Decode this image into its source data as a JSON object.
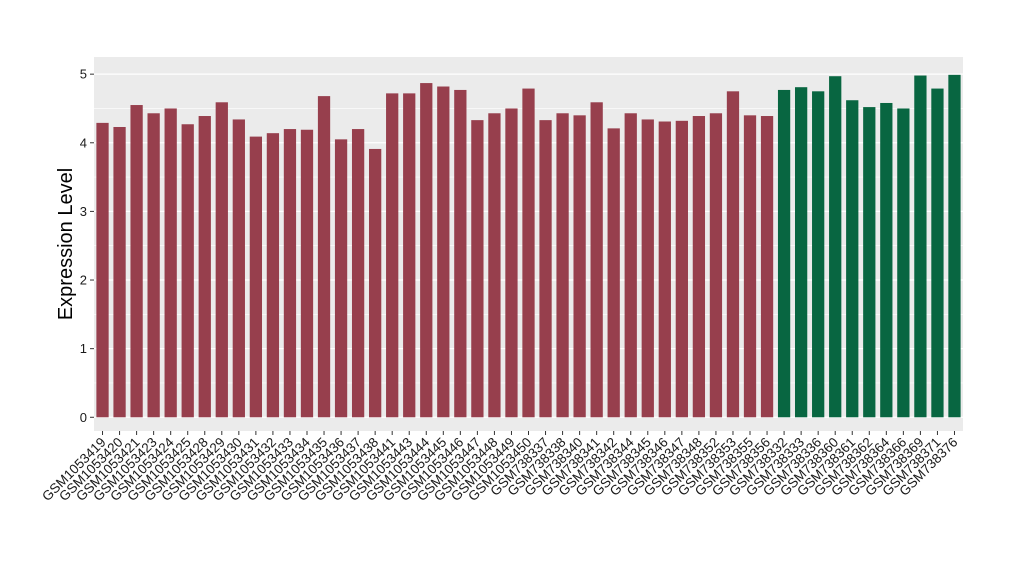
{
  "chart_data": {
    "type": "bar",
    "title": "",
    "xlabel": "",
    "ylabel": "Expression Level",
    "ylim": [
      -0.2,
      5.25
    ],
    "yticks": [
      0,
      1,
      2,
      3,
      4,
      5
    ],
    "grid": true,
    "legend": "none",
    "colors": {
      "group1": "#973f4d",
      "group2": "#086641",
      "panel_bg": "#ebebeb",
      "grid": "#ffffff"
    },
    "categories": [
      "GSM1053419",
      "GSM1053420",
      "GSM1053421",
      "GSM1053423",
      "GSM1053424",
      "GSM1053425",
      "GSM1053428",
      "GSM1053429",
      "GSM1053430",
      "GSM1053431",
      "GSM1053432",
      "GSM1053433",
      "GSM1053434",
      "GSM1053435",
      "GSM1053436",
      "GSM1053437",
      "GSM1053438",
      "GSM1053441",
      "GSM1053443",
      "GSM1053444",
      "GSM1053445",
      "GSM1053446",
      "GSM1053447",
      "GSM1053448",
      "GSM1053449",
      "GSM1053450",
      "GSM738337",
      "GSM738338",
      "GSM738340",
      "GSM738341",
      "GSM738342",
      "GSM738344",
      "GSM738345",
      "GSM738346",
      "GSM738347",
      "GSM738348",
      "GSM738352",
      "GSM738353",
      "GSM738355",
      "GSM738356",
      "GSM738332",
      "GSM738333",
      "GSM738336",
      "GSM738360",
      "GSM738361",
      "GSM738362",
      "GSM738364",
      "GSM738366",
      "GSM738369",
      "GSM738371",
      "GSM738376"
    ],
    "values": [
      4.29,
      4.23,
      4.55,
      4.43,
      4.5,
      4.27,
      4.39,
      4.59,
      4.34,
      4.09,
      4.14,
      4.2,
      4.19,
      4.68,
      4.05,
      4.2,
      3.91,
      4.72,
      4.72,
      4.87,
      4.82,
      4.77,
      4.33,
      4.43,
      4.5,
      4.79,
      4.33,
      4.43,
      4.4,
      4.59,
      4.21,
      4.43,
      4.34,
      4.31,
      4.32,
      4.39,
      4.43,
      4.75,
      4.4,
      4.39,
      4.77,
      4.81,
      4.75,
      4.97,
      4.62,
      4.52,
      4.58,
      4.5,
      4.98,
      4.79,
      4.99
    ],
    "groups": [
      1,
      1,
      1,
      1,
      1,
      1,
      1,
      1,
      1,
      1,
      1,
      1,
      1,
      1,
      1,
      1,
      1,
      1,
      1,
      1,
      1,
      1,
      1,
      1,
      1,
      1,
      1,
      1,
      1,
      1,
      1,
      1,
      1,
      1,
      1,
      1,
      1,
      1,
      1,
      1,
      2,
      2,
      2,
      2,
      2,
      2,
      2,
      2,
      2,
      2,
      2
    ]
  }
}
